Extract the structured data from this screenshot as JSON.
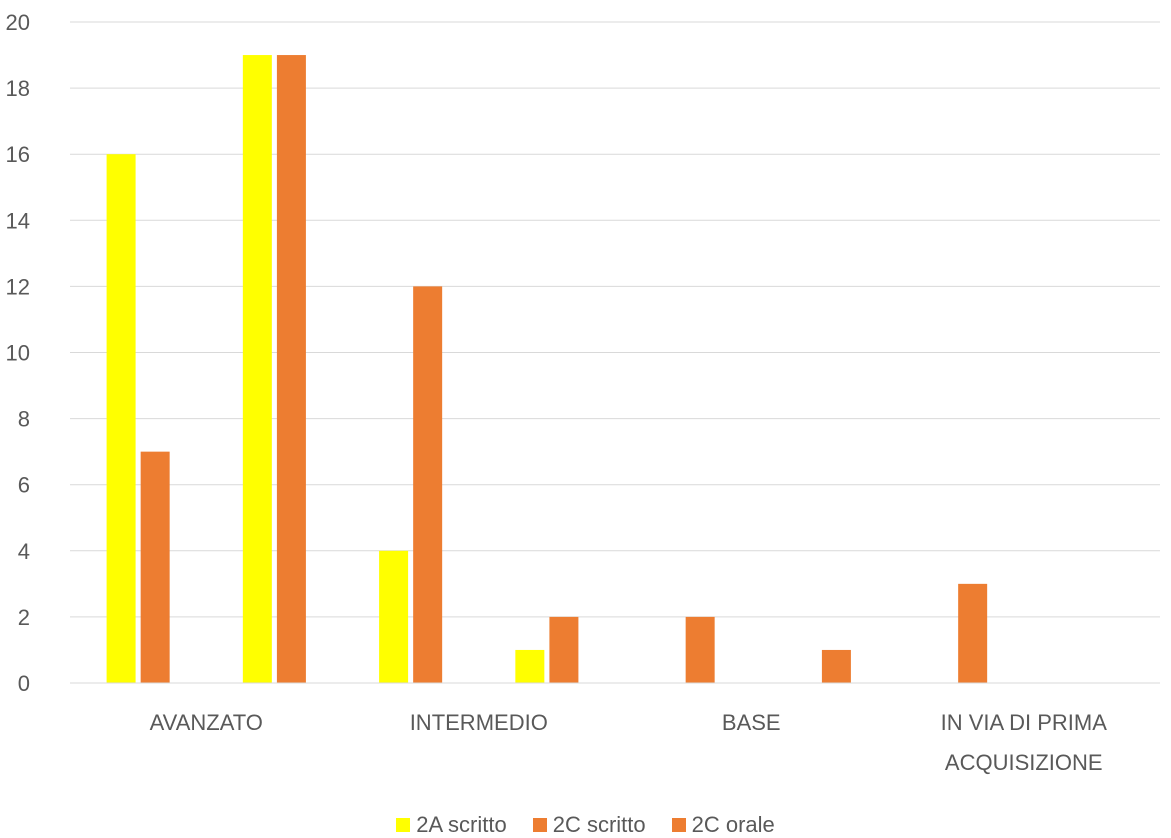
{
  "chart_data": {
    "type": "bar",
    "categories": [
      "AVANZATO",
      "INTERMEDIO",
      "BASE",
      "IN VIA DI PRIMA ACQUISIZIONE"
    ],
    "category_lines": [
      [
        "AVANZATO"
      ],
      [
        "INTERMEDIO"
      ],
      [
        "BASE"
      ],
      [
        "IN VIA DI PRIMA",
        "ACQUISIZIONE"
      ]
    ],
    "series": [
      {
        "name": "2A scritto",
        "color": "#FFFF00"
      },
      {
        "name": "2C scritto",
        "color": "#ED7D31"
      },
      {
        "name": "2C orale",
        "color": "#ED7D31"
      }
    ],
    "bars": [
      {
        "category": 0,
        "series": 0,
        "value": 16
      },
      {
        "category": 0,
        "series": 1,
        "value": 7
      },
      {
        "category": 0,
        "series": 0,
        "value": 19
      },
      {
        "category": 0,
        "series": 1,
        "value": 19
      },
      {
        "category": 1,
        "series": 0,
        "value": 4
      },
      {
        "category": 1,
        "series": 1,
        "value": 12
      },
      {
        "category": 1,
        "series": 0,
        "value": 1
      },
      {
        "category": 1,
        "series": 1,
        "value": 2
      },
      {
        "category": 2,
        "series": 1,
        "value": 2
      },
      {
        "category": 2,
        "series": 1,
        "value": 1
      },
      {
        "category": 3,
        "series": 1,
        "value": 3
      }
    ],
    "ylim": [
      0,
      20
    ],
    "yticks": [
      "0",
      "2",
      "4",
      "6",
      "8",
      "10",
      "12",
      "14",
      "16",
      "18",
      "20"
    ],
    "grid": true,
    "legend_position": "bottom"
  }
}
